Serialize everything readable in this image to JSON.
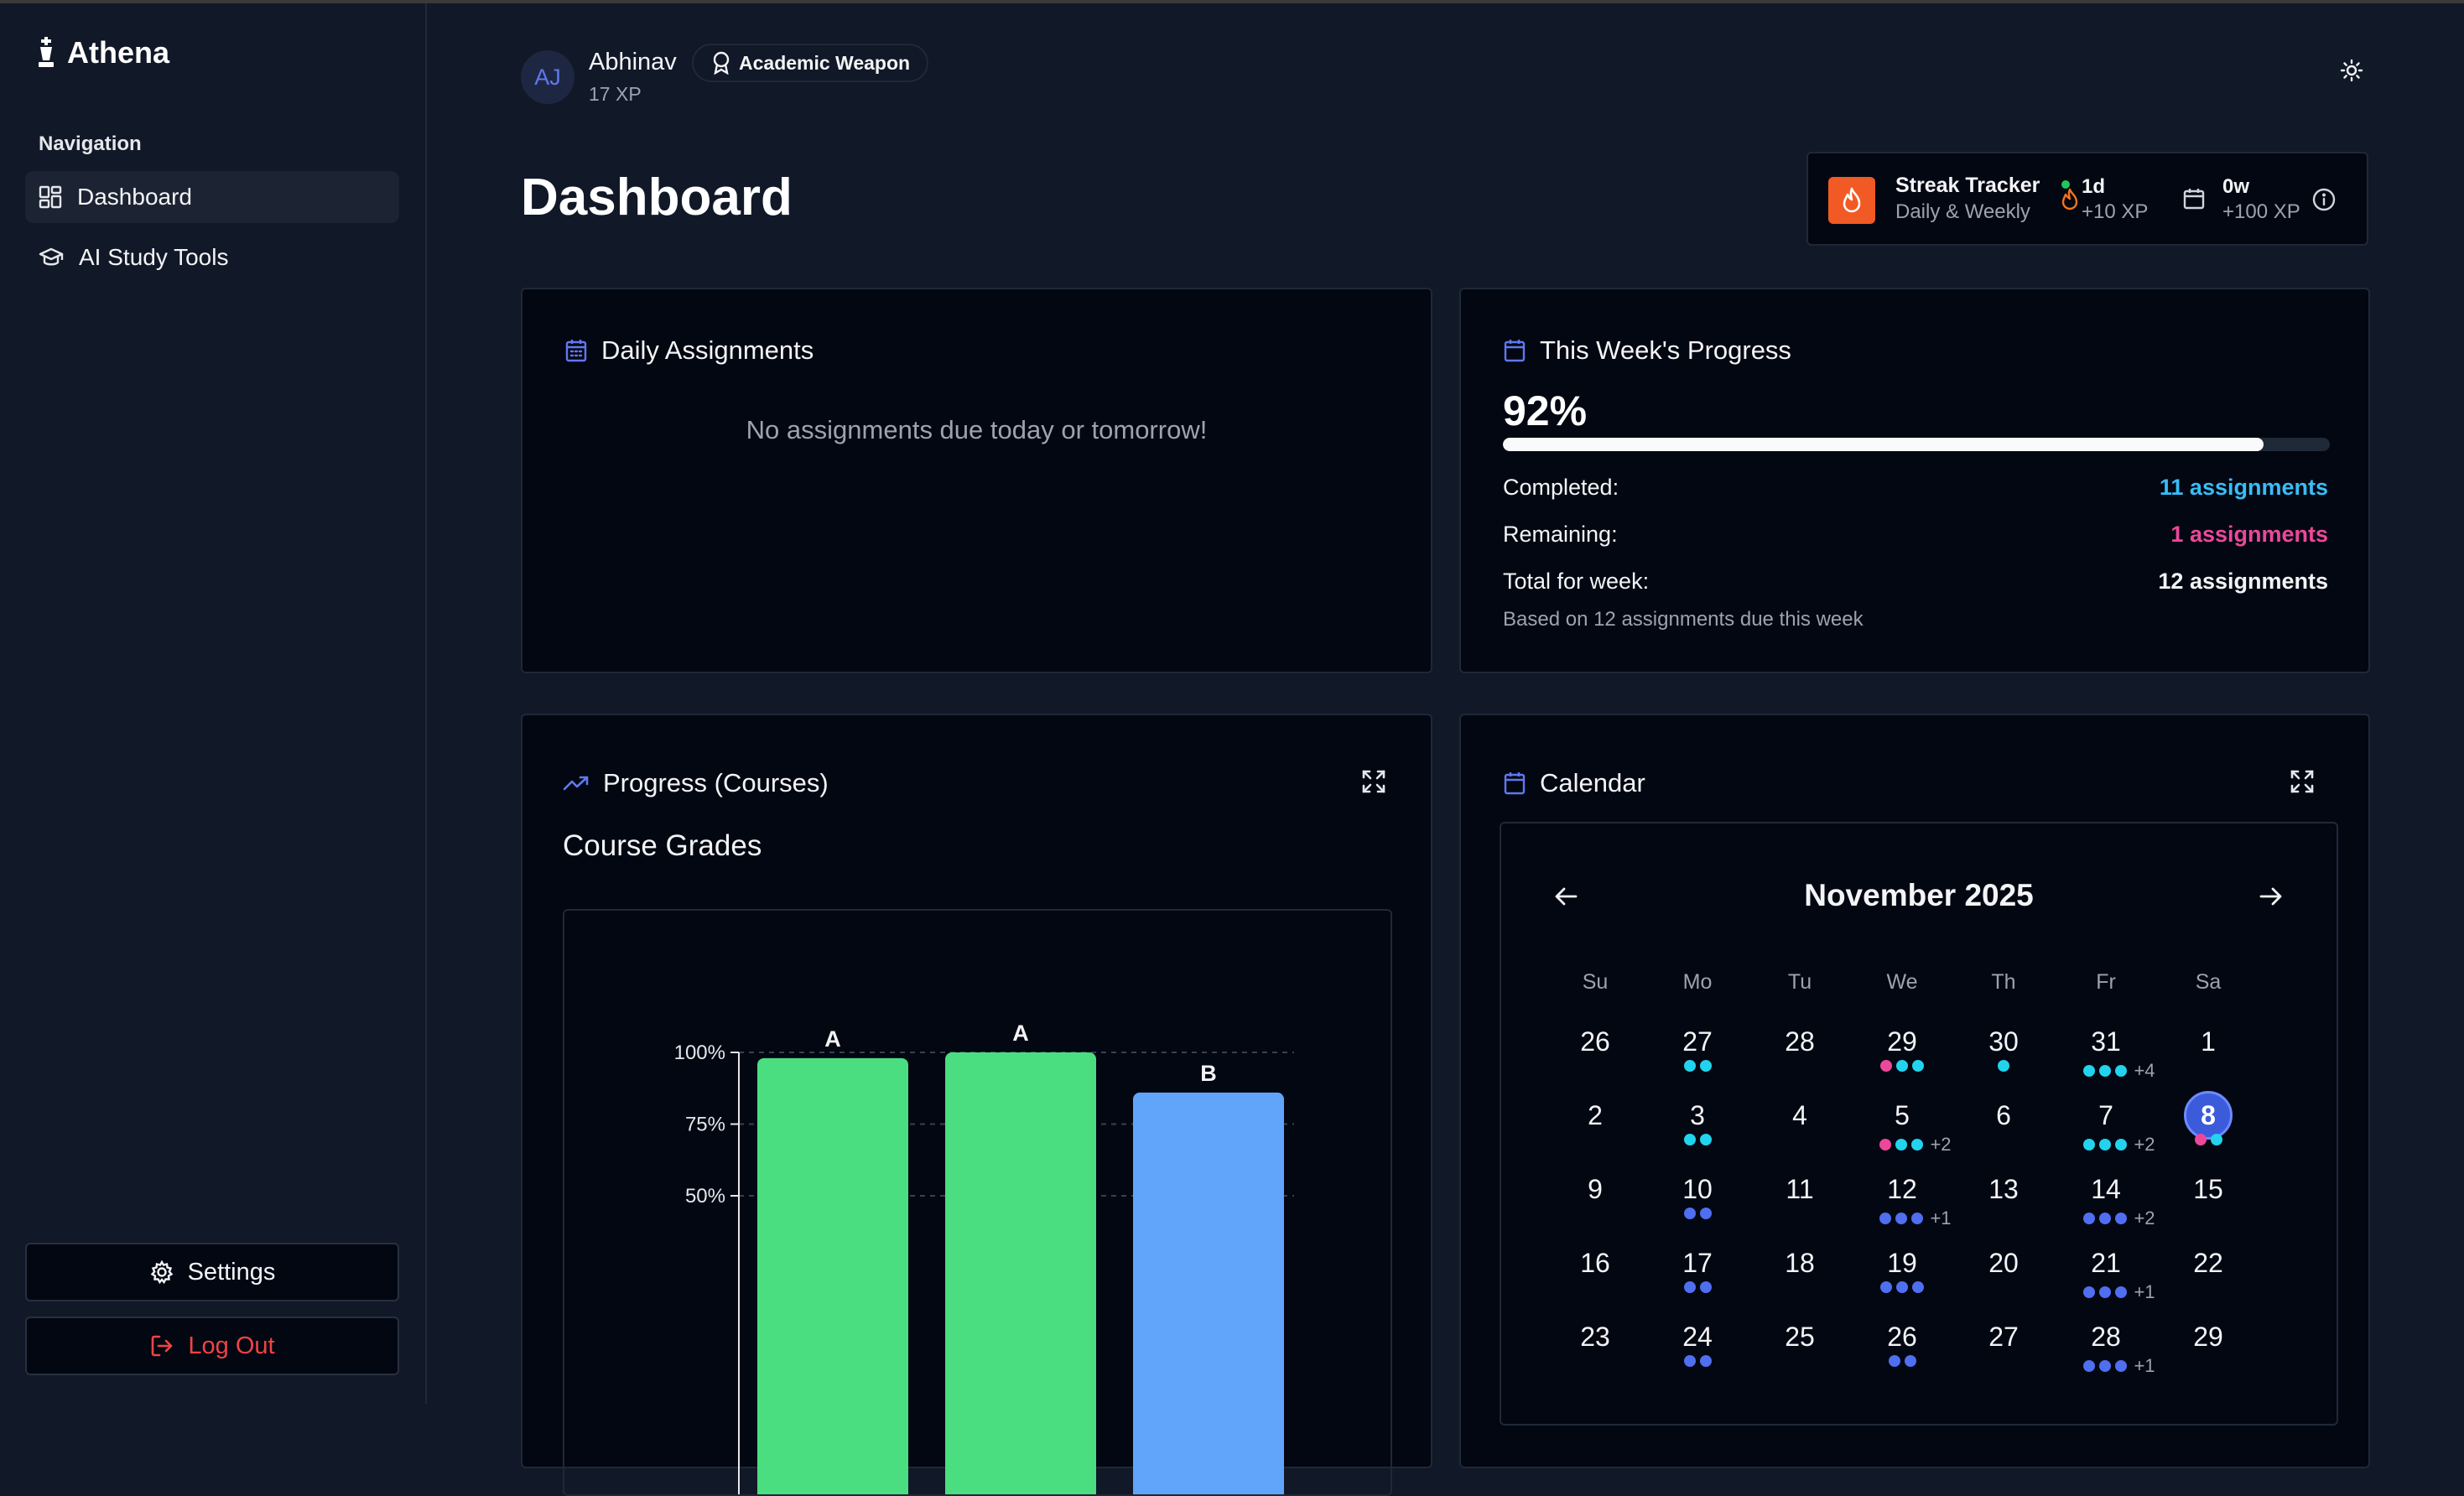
{
  "app": {
    "name": "Athena"
  },
  "sidebar": {
    "nav_title": "Navigation",
    "items": [
      {
        "label": "Dashboard",
        "icon": "dashboard-icon",
        "active": true
      },
      {
        "label": "AI Study Tools",
        "icon": "graduation-cap-icon",
        "active": false
      }
    ],
    "settings_label": "Settings",
    "logout_label": "Log Out"
  },
  "header": {
    "avatar_initials": "AJ",
    "user_name": "Abhinav",
    "user_xp": "17 XP",
    "badge_label": "Academic Weapon",
    "page_title": "Dashboard"
  },
  "streak": {
    "title": "Streak Tracker",
    "subtitle": "Daily & Weekly",
    "daily_value": "1d",
    "daily_xp": "+10 XP",
    "weekly_value": "0w",
    "weekly_xp": "+100 XP"
  },
  "daily_assignments": {
    "title": "Daily Assignments",
    "empty_text": "No assignments due today or tomorrow!"
  },
  "week_progress": {
    "title": "This Week's Progress",
    "percent_label": "92%",
    "progress_fraction": 0.92,
    "completed_label": "Completed:",
    "completed_value": "11 assignments",
    "remaining_label": "Remaining:",
    "remaining_value": "1 assignments",
    "total_label": "Total for week:",
    "total_value": "12 assignments",
    "footnote": "Based on 12 assignments due this week"
  },
  "progress_courses": {
    "title": "Progress (Courses)",
    "chart_heading": "Course Grades"
  },
  "chart_data": {
    "type": "bar",
    "title": "Course Grades",
    "ylim": [
      0,
      100
    ],
    "yticks": [
      "100%",
      "75%",
      "50%"
    ],
    "ytick_values": [
      100,
      75,
      50
    ],
    "grid": true,
    "bars": [
      {
        "label": "A",
        "value": 98,
        "color": "#4ade80"
      },
      {
        "label": "A",
        "value": 100,
        "color": "#4ade80"
      },
      {
        "label": "B",
        "value": 86,
        "color": "#60a5fa"
      }
    ]
  },
  "calendar": {
    "title": "Calendar",
    "month_label": "November 2025",
    "weekdays": [
      "Su",
      "Mo",
      "Tu",
      "We",
      "Th",
      "Fr",
      "Sa"
    ],
    "today": "8",
    "weeks": [
      [
        {
          "d": "26",
          "dots": []
        },
        {
          "d": "27",
          "dots": [
            "cyan",
            "cyan"
          ]
        },
        {
          "d": "28",
          "dots": []
        },
        {
          "d": "29",
          "dots": [
            "pink",
            "cyan",
            "cyan"
          ]
        },
        {
          "d": "30",
          "dots": [
            "cyan"
          ]
        },
        {
          "d": "31",
          "dots": [
            "cyan",
            "cyan",
            "cyan"
          ],
          "more": "+4"
        },
        {
          "d": "1",
          "dots": []
        }
      ],
      [
        {
          "d": "2",
          "dots": []
        },
        {
          "d": "3",
          "dots": [
            "cyan",
            "cyan"
          ]
        },
        {
          "d": "4",
          "dots": []
        },
        {
          "d": "5",
          "dots": [
            "pink",
            "cyan",
            "cyan"
          ],
          "more": "+2"
        },
        {
          "d": "6",
          "dots": []
        },
        {
          "d": "7",
          "dots": [
            "cyan",
            "cyan",
            "cyan"
          ],
          "more": "+2"
        },
        {
          "d": "8",
          "dots": [
            "pink",
            "cyan"
          ]
        }
      ],
      [
        {
          "d": "9",
          "dots": []
        },
        {
          "d": "10",
          "dots": [
            "blue",
            "blue"
          ]
        },
        {
          "d": "11",
          "dots": []
        },
        {
          "d": "12",
          "dots": [
            "blue",
            "blue",
            "blue"
          ],
          "more": "+1"
        },
        {
          "d": "13",
          "dots": []
        },
        {
          "d": "14",
          "dots": [
            "blue",
            "blue",
            "blue"
          ],
          "more": "+2"
        },
        {
          "d": "15",
          "dots": []
        }
      ],
      [
        {
          "d": "16",
          "dots": []
        },
        {
          "d": "17",
          "dots": [
            "blue",
            "blue"
          ]
        },
        {
          "d": "18",
          "dots": []
        },
        {
          "d": "19",
          "dots": [
            "blue",
            "blue",
            "blue"
          ]
        },
        {
          "d": "20",
          "dots": []
        },
        {
          "d": "21",
          "dots": [
            "blue",
            "blue",
            "blue"
          ],
          "more": "+1"
        },
        {
          "d": "22",
          "dots": []
        }
      ],
      [
        {
          "d": "23",
          "dots": []
        },
        {
          "d": "24",
          "dots": [
            "blue",
            "blue"
          ]
        },
        {
          "d": "25",
          "dots": []
        },
        {
          "d": "26",
          "dots": [
            "blue",
            "blue"
          ]
        },
        {
          "d": "27",
          "dots": []
        },
        {
          "d": "28",
          "dots": [
            "blue",
            "blue",
            "blue"
          ],
          "more": "+1"
        },
        {
          "d": "29",
          "dots": []
        }
      ]
    ]
  },
  "colors": {
    "accent": "#6178f0",
    "completed": "#38bdf8",
    "remaining": "#ec4899",
    "logout": "#ef4444",
    "dot_cyan": "#22d3ee",
    "dot_pink": "#ec4899",
    "dot_blue": "#4f6ef0",
    "streak_flame": "#f15a24"
  }
}
